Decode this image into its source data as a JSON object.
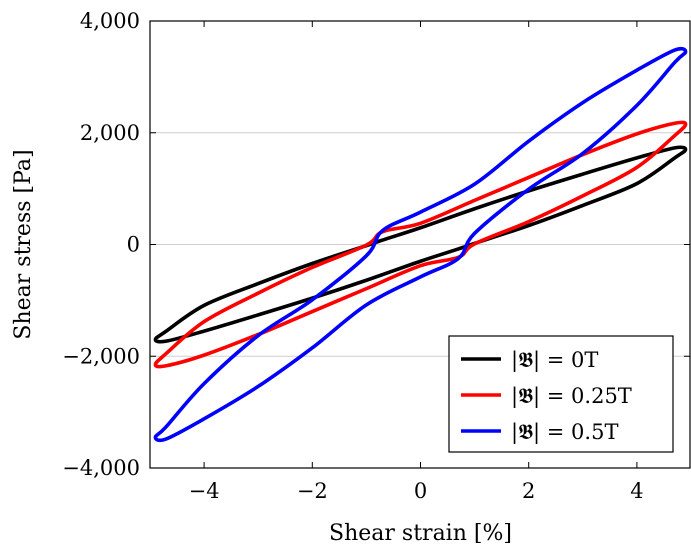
{
  "chart_data": {
    "type": "line",
    "title": "",
    "xlabel": "Shear strain [%]",
    "ylabel": "Shear stress [Pa]",
    "xlim": [
      -5.0,
      5.0
    ],
    "ylim": [
      -4000,
      4000
    ],
    "x_ticks": [
      -4,
      -2,
      0,
      2,
      4
    ],
    "x_tick_labels": [
      "−4",
      "−2",
      "0",
      "2",
      "4"
    ],
    "y_ticks": [
      -4000,
      -2000,
      0,
      2000,
      4000
    ],
    "y_tick_labels": [
      "−4,000",
      "−2,000",
      "0",
      "2,000",
      "4,000"
    ],
    "grid": "horizontal major",
    "legend_position": "bottom-right",
    "series": [
      {
        "name": "|𝕭| = 0T",
        "color": "#000000",
        "shape": "closed hysteresis loop",
        "points": [
          [
            4.9,
            1700
          ],
          [
            4.7,
            1730
          ],
          [
            4.0,
            1550
          ],
          [
            3.0,
            1260
          ],
          [
            2.0,
            960
          ],
          [
            1.0,
            640
          ],
          [
            0.0,
            300
          ],
          [
            -0.7,
            80
          ],
          [
            -1.0,
            -20
          ],
          [
            -2.0,
            -340
          ],
          [
            -3.0,
            -700
          ],
          [
            -4.0,
            -1090
          ],
          [
            -4.7,
            -1550
          ],
          [
            -4.9,
            -1700
          ],
          [
            -4.7,
            -1730
          ],
          [
            -4.0,
            -1550
          ],
          [
            -3.0,
            -1260
          ],
          [
            -2.0,
            -960
          ],
          [
            -1.0,
            -640
          ],
          [
            0.0,
            -300
          ],
          [
            0.7,
            -80
          ],
          [
            1.0,
            20
          ],
          [
            2.0,
            340
          ],
          [
            3.0,
            700
          ],
          [
            4.0,
            1090
          ],
          [
            4.7,
            1550
          ],
          [
            4.9,
            1700
          ]
        ]
      },
      {
        "name": "|𝕭| = 0.25T",
        "color": "#ff0000",
        "shape": "closed hysteresis loop",
        "points": [
          [
            4.9,
            2150
          ],
          [
            4.7,
            2170
          ],
          [
            4.0,
            1980
          ],
          [
            3.0,
            1610
          ],
          [
            2.0,
            1200
          ],
          [
            1.0,
            790
          ],
          [
            0.0,
            380
          ],
          [
            -0.7,
            230
          ],
          [
            -1.0,
            -10
          ],
          [
            -2.0,
            -410
          ],
          [
            -3.0,
            -870
          ],
          [
            -4.0,
            -1380
          ],
          [
            -4.7,
            -1950
          ],
          [
            -4.9,
            -2150
          ],
          [
            -4.7,
            -2170
          ],
          [
            -4.0,
            -1980
          ],
          [
            -3.0,
            -1610
          ],
          [
            -2.0,
            -1200
          ],
          [
            -1.0,
            -790
          ],
          [
            0.0,
            -380
          ],
          [
            0.7,
            -230
          ],
          [
            1.0,
            10
          ],
          [
            2.0,
            410
          ],
          [
            3.0,
            870
          ],
          [
            4.0,
            1380
          ],
          [
            4.7,
            1950
          ],
          [
            4.9,
            2150
          ]
        ]
      },
      {
        "name": "|𝕭| = 0.5T",
        "color": "#0000ff",
        "shape": "closed hysteresis loop",
        "points": [
          [
            4.9,
            3450
          ],
          [
            4.7,
            3480
          ],
          [
            4.0,
            3120
          ],
          [
            3.0,
            2540
          ],
          [
            2.0,
            1850
          ],
          [
            1.0,
            1080
          ],
          [
            0.0,
            580
          ],
          [
            -0.7,
            250
          ],
          [
            -1.0,
            -200
          ],
          [
            -2.0,
            -990
          ],
          [
            -3.0,
            -1630
          ],
          [
            -4.0,
            -2490
          ],
          [
            -4.7,
            -3260
          ],
          [
            -4.9,
            -3450
          ],
          [
            -4.7,
            -3480
          ],
          [
            -4.0,
            -3120
          ],
          [
            -3.0,
            -2540
          ],
          [
            -2.0,
            -1850
          ],
          [
            -1.0,
            -1080
          ],
          [
            0.0,
            -580
          ],
          [
            0.7,
            -250
          ],
          [
            1.0,
            200
          ],
          [
            2.0,
            990
          ],
          [
            3.0,
            1630
          ],
          [
            4.0,
            2490
          ],
          [
            4.7,
            3260
          ],
          [
            4.9,
            3450
          ]
        ]
      }
    ]
  }
}
